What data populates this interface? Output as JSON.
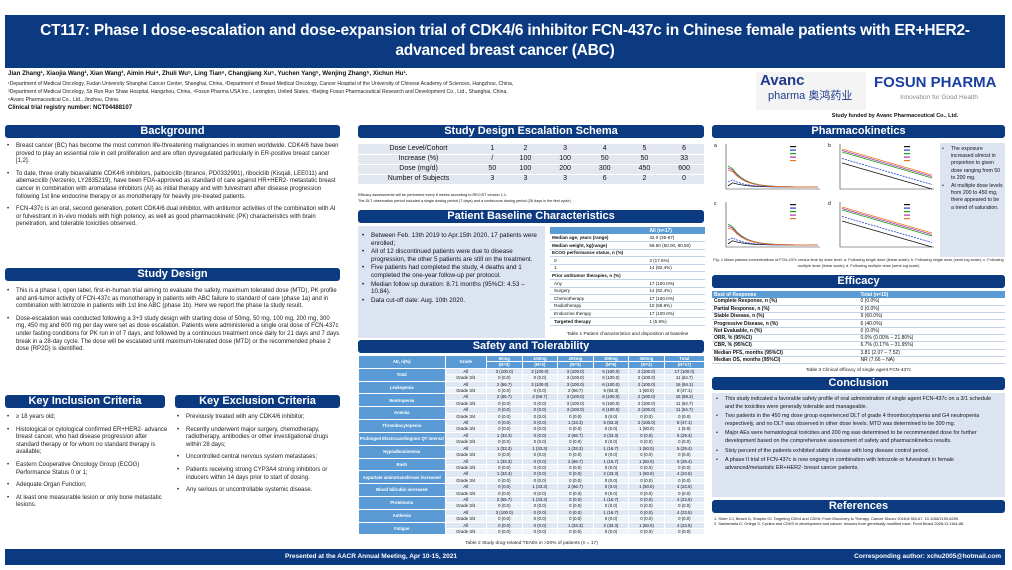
{
  "title": "CT117: Phase I dose-escalation and dose-expansion trial of CDK4/6 inhibitor FCN-437c in Chinese female patients with ER+HER2- advanced breast cancer (ABC)",
  "authors": "Jian Zhang¹, Xiaojia Wang², Xian Wang³, Aimin Hui⁴, Zhuli Wu⁵, Ling Tian⁶, Changjiang Xu⁵, Yuchen Yang⁵, Wenjing Zhang⁵, Xichun Hu¹.",
  "affiliations": [
    "¹Department of Medical Oncology, Fudan University Shanghai Cancer Center, Shanghai, China, ²Department of Breast Medical Oncology, Cancer Hospital of the University of Chinese Academy of Sciences, Hangzhou, China,",
    "³Department of Medical Oncology, Sir Run Run Shaw Hospital, Hangzhou, China, ⁴Fosun Pharma USA Inc., Lexington, United States, ⁵Beijing Fosun Pharmaceutical Research and Development Co., Ltd., Shanghai, China,",
    "⁶Avanc Pharmaceutical Co., Ltd., Jinzhou, China."
  ],
  "registry": "Clinical trial registry number: NCT04488107",
  "logos": {
    "avanc_top": "Avanc",
    "avanc_bottom": "pharma 奥鸿药业",
    "fosun": "FOSUN PHARMA",
    "fosun_tag": "Innovation for Good Health"
  },
  "funded": "Study funded by Avanc Pharmaceutical Co., Ltd.",
  "background": {
    "title": "Background",
    "items": [
      "Breast cancer (BC) has become the most common life-threatening malignancies in women worldwide. CDK4/6 have been proved to play an essential role in cell proliferation and are often dysregulated particularly in ER-positive breast cancer [1,2].",
      "To date, three orally bioavailable CDK4/6 inhibitors, palbociclib (Ibrance, PD0332991), ribociclib (Kisqali, LEE011) and abemaciclib (Verzenio, LY2835219), have been FDA-approved as standard of care against HR+HER2- metastatic breast cancer in combination with aromatase inhibitors (AI) as initial therapy and with fulvestrant after disease progression following 1st line endocrine therapy or as monotherapy for heavily pre-treated patients.",
      "FCN-437c is an oral, second generation, potent CDK4/6 dual inhibitor, with antitumor activities of the combination with AI or fulvestrant in in-vivo models with high potency, as well as good pharmacokinetic (PK) characteristics with brain penetration, and tolerable toxicities observed."
    ]
  },
  "design": {
    "title": "Study Design",
    "items": [
      "This is a phase I, open label, first-in-human trial aiming to evaluate the safety, maximum tolerated dose (MTD), PK profile and anti-tumor activity of FCN-437c as monotherapy in patients with ABC failure to standard of care (phase 1a) and in combination with letrozole in patients with 1st line ABC (phase 1b). Here we report the phase Ia study result.",
      "Dose-escalation was conducted following a 3+3 study design with starting dose of 50mg, 50 mg, 100 mg, 200 mg, 300 mg, 450 mg and 600 mg per day were set as dose escalation. Patients were administered a single oral dose of FCN-437c under fasting conditions for PK run in of 7 days, and followed by a continuous treatment once daily for 21 days and 7 days break in a 28-day cycle. The dose will be escalated until maximum-tolerated dose (MTD) or the recommended phase 2 dose (RP2D) is identified."
    ]
  },
  "inclusion": {
    "title": "Key Inclusion Criteria",
    "items": [
      "≥ 18 years old;",
      "Histological or cytological confirmed ER+HER2- advance breast cancer, who had disease progression after standard therapy or for whom no standard therapy is available;",
      "Eastern Cooperative Oncology Group (ECOG) Performance Status 0 or 1;",
      "Adequate Organ Function;",
      "At least one measurable lesion or only bone metastatic lesions."
    ]
  },
  "exclusion": {
    "title": "Key Exclusion Criteria",
    "items": [
      "Previously treated with any CDK4/6 inhibitor;",
      "Recently underwent major surgery, chemotherapy, radiotherapy, antibodies or other investigational drugs within 28 days;",
      "Uncontrolled central nervous system metastases;",
      "Patients receiving strong CYP3A4 strong inhibitors or inducers within 14 days prior to start of dosing.",
      "Any serious or uncontrollable systemic disease."
    ]
  },
  "schema": {
    "title": "Study Design Escalation Schema",
    "rows": [
      [
        "Dose Level/Cohort",
        "1",
        "2",
        "3",
        "4",
        "5",
        "6"
      ],
      [
        "Increase (%)",
        "/",
        "100",
        "100",
        "50",
        "50",
        "33"
      ],
      [
        "Dose (mg/d)",
        "50",
        "100",
        "200",
        "300",
        "450",
        "600"
      ],
      [
        "Number of Subjects",
        "3",
        "3",
        "3",
        "6",
        "2",
        "0"
      ]
    ],
    "notes": [
      "Efficacy assessments will be performed every 8 weeks according to RECIST version 1.1.",
      "The DLT observation period included a single dosing period (7 days) and a continuous dosing period (28 days in the first cycle)."
    ]
  },
  "baseline": {
    "title": "Patient Baseline Characteristics",
    "items": [
      "Between Feb. 13th 2019 to Apr.15th 2020, 17 patients were enrolled;",
      "All of 12 discontinued patients were due to disease progression, the other 5 patients are still on the treatment.",
      "Five patients had completed the study, 4 deaths and 1 completed the one-year follow-up per protocol.",
      "Median follow up duration: 8.71 months (95%CI: 4.53 – 10.84).",
      "Data cut-off date: Aug. 10th 2020."
    ],
    "table_header": [
      "",
      "All (n=17)"
    ],
    "table_rows": [
      [
        "Median age, years (range)",
        "42.0 (35-67)"
      ],
      [
        "Median weight, kg(range)",
        "58.50 (50.00, 80.50)"
      ],
      [
        "ECOG performance status, n (%)",
        ""
      ],
      [
        "0",
        "3 (17.6%)"
      ],
      [
        "1",
        "14 (82.4%)"
      ],
      [
        "Prior antitumor therapies, n (%)",
        ""
      ],
      [
        "Any",
        "17 (100.0%)"
      ],
      [
        "Surgery",
        "14 (82.4%)"
      ],
      [
        "Chemotherapy",
        "17 (100.0%)"
      ],
      [
        "Radiotherapy",
        "10 (58.8%)"
      ],
      [
        "Endocrine therapy",
        "17 (100.0%)"
      ],
      [
        "Targeted therapy",
        "1 (5.9%)"
      ]
    ],
    "caption": "Table 1 Patient characteristics and disposition at baseline"
  },
  "safety": {
    "title": "Safety and Tolerability",
    "headers": [
      "AE, n(%)",
      "Grade",
      "50mg",
      "100mg",
      "200mg",
      "300mg",
      "450mg",
      "Total"
    ],
    "n": [
      "(N=3)",
      "(N=3)",
      "(N=3)",
      "(N=6)",
      "(N=2)",
      "(N=17)"
    ],
    "rows": [
      {
        "ae": "Total",
        "all": [
          "3 (100.0)",
          "3 (100.0)",
          "3 (100.0)",
          "6 (100.0)",
          "2 (100.0)",
          "17 (100.0)"
        ],
        "g34": [
          "0 (0.0)",
          "0 (0.0)",
          "3 (100.0)",
          "6 (100.0)",
          "2 (100.0)",
          "11 (64.7)"
        ]
      },
      {
        "ae": "Leukopenia",
        "all": [
          "2 (66.7)",
          "3 (100.0)",
          "3 (100.0)",
          "6 (100.0)",
          "2 (100.0)",
          "16 (94.1)"
        ],
        "g34": [
          "0 (0.0)",
          "0 (0.0)",
          "2 (66.7)",
          "5 (83.3)",
          "1 (50.0)",
          "8 (47.1)"
        ]
      },
      {
        "ae": "Neutropenia",
        "all": [
          "2 (66.7)",
          "2 (66.7)",
          "3 (100.0)",
          "6 (100.0)",
          "2 (100.0)",
          "15 (88.2)"
        ],
        "g34": [
          "0 (0.0)",
          "0 (0.0)",
          "3 (100.0)",
          "6 (100.0)",
          "2 (100.0)",
          "11 (64.7)"
        ]
      },
      {
        "ae": "Anemia",
        "all": [
          "0 (0.0)",
          "0 (0.0)",
          "3 (100.0)",
          "6 (100.0)",
          "2 (100.0)",
          "11 (64.7)"
        ],
        "g34": [
          "0 (0.0)",
          "0 (0.0)",
          "0 (0.0)",
          "0 (0.0)",
          "0 (0.0)",
          "0 (0.0)"
        ]
      },
      {
        "ae": "Thrombocytopenia",
        "all": [
          "0 (0.0)",
          "0 (0.0)",
          "1 (33.3)",
          "5 (83.3)",
          "2 (100.0)",
          "8 (47.1)"
        ],
        "g34": [
          "0 (0.0)",
          "0 (0.0)",
          "0 (0.0)",
          "0 (0.0)",
          "1 (50.0)",
          "1 (5.9)"
        ]
      },
      {
        "ae": "Prolonged Electrocardiogram QT interval",
        "all": [
          "1 (33.3)",
          "0 (0.0)",
          "2 (66.7)",
          "2 (33.3)",
          "0 (0.0)",
          "5 (29.4)"
        ],
        "g34": [
          "0 (0.0)",
          "0 (0.0)",
          "0 (0.0)",
          "0 (0.0)",
          "0 (0.0)",
          "0 (0.0)"
        ]
      },
      {
        "ae": "Hypoalbuminemia",
        "all": [
          "1 (33.3)",
          "1 (33.3)",
          "1 (33.3)",
          "1 (16.7)",
          "1 (50.0)",
          "5 (29.4)"
        ],
        "g34": [
          "0 (0.0)",
          "0 (0.0)",
          "0 (0.0)",
          "0 (0.0)",
          "0 (0.0)",
          "0 (0.0)"
        ]
      },
      {
        "ae": "Rash",
        "all": [
          "1 (33.3)",
          "0 (0.0)",
          "2 (66.7)",
          "1 (16.7)",
          "1 (50.0)",
          "5 (29.4)"
        ],
        "g34": [
          "0 (0.0)",
          "0 (0.0)",
          "0 (0.0)",
          "0 (0.0)",
          "0 (0.0)",
          "0 (0.0)"
        ]
      },
      {
        "ae": "Aspartate aminotransferase increased",
        "all": [
          "1 (33.3)",
          "0 (0.0)",
          "0 (0.0)",
          "2 (33.3)",
          "1 (50.0)",
          "4 (23.5)"
        ],
        "g34": [
          "0 (0.0)",
          "0 (0.0)",
          "0 (0.0)",
          "0 (0.0)",
          "0 (0.0)",
          "0 (0.0)"
        ]
      },
      {
        "ae": "Blood bilirubin increased",
        "all": [
          "0 (0.0)",
          "1 (33.3)",
          "2 (66.7)",
          "0 (0.0)",
          "1 (50.0)",
          "4 (23.5)"
        ],
        "g34": [
          "0 (0.0)",
          "0 (0.0)",
          "0 (0.0)",
          "0 (0.0)",
          "0 (0.0)",
          "0 (0.0)"
        ]
      },
      {
        "ae": "Proteinuria",
        "all": [
          "2 (66.7)",
          "1 (33.3)",
          "0 (0.0)",
          "1 (16.7)",
          "0 (0.0)",
          "4 (23.5)"
        ],
        "g34": [
          "0 (0.0)",
          "0 (0.0)",
          "0 (0.0)",
          "0 (0.0)",
          "0 (0.0)",
          "0 (0.0)"
        ]
      },
      {
        "ae": "Asthenia",
        "all": [
          "3 (100.0)",
          "0 (0.0)",
          "0 (0.0)",
          "1 (16.7)",
          "0 (0.0)",
          "4 (23.5)"
        ],
        "g34": [
          "0 (0.0)",
          "0 (0.0)",
          "0 (0.0)",
          "0 (0.0)",
          "0 (0.0)",
          "0 (0.0)"
        ]
      },
      {
        "ae": "Fatigue",
        "all": [
          "0 (0.0)",
          "0 (0.0)",
          "1 (33.3)",
          "2 (33.3)",
          "1 (50.0)",
          "4 (23.5)"
        ],
        "g34": [
          "0 (0.0)",
          "0 (0.0)",
          "0 (0.0)",
          "0 (0.0)",
          "0 (0.0)",
          "0 (0.0)"
        ]
      }
    ],
    "grade_all": "All",
    "grade_34": "Grade 3/4",
    "caption": "Table 2 Study drug-related TEAEs in >20% of patients (n = 17)"
  },
  "pk": {
    "title": "Pharmacokinetics",
    "items": [
      "The exposure increased almost in proportion to given dose ranging from 50 to 200 mg.",
      "At multiple dose levels from 200 to 450 mg, there appeared to be a trend of saturation."
    ],
    "caption": "Fig. 1 Mean plasma concentrations of FCN-437c versus time by dose level. a. Following single dose (linear scale); b. Following single dose (semi-log scale); c. Following multiple dose (linear scale); d. Following multiple dose (semi-log scale)",
    "panel_labels": [
      "a",
      "b",
      "c",
      "d"
    ],
    "series_colors": [
      "#111111",
      "#1f3fd8",
      "#18a018",
      "#b030b0",
      "#e87820"
    ]
  },
  "efficacy": {
    "title": "Efficacy",
    "header": [
      "Best of Response",
      "Total (n=15)"
    ],
    "rows": [
      [
        "Complete Response, n (%)",
        "0 (0.0%)"
      ],
      [
        "Partial Response, n (%)",
        "0 (0.0%)"
      ],
      [
        "Stable Disease, n (%)",
        "9 (60.0%)"
      ],
      [
        "Progressive Disease, n (%)",
        "6 (40.0%)"
      ],
      [
        "Not Evaluable, n (%)",
        "0 (0.0%)"
      ],
      [
        "ORR, % (95%CI)",
        "0.0% (0.00% – 21.80%)"
      ],
      [
        "CBR, % (95%CI)",
        "6.7% (0.17% – 31.95%)"
      ],
      [
        "Median PFS, months (95%CI)",
        "3.81 (2.07 – 7.52)"
      ],
      [
        "Median OS, months (95%CI)",
        "NR (7.66 – NA)"
      ]
    ],
    "caption": "Table 3 Clinical efficacy of single agent FCN-437c"
  },
  "conclusion": {
    "title": "Conclusion",
    "items": [
      "This study indicated a favorable safety profile of oral administration of single agent FCN-437c on a 3/1 schedule and the toxicities were generally tolerable and manageable.",
      "Two patients in the 450 mg dose group experienced DLT of grade 4 thrombocytopenia and G4 neutropenia respectively, and no DLT was observed in other dose levels. MTD was determined to be 300 mg.",
      "Major AEs were hematological toxicities and 200 mg was determined to be recommended dose for further development based on the comprehensive assessment of safety and pharmacokinetics results.",
      "Sixty percent of the patients exhibited stable disease with long disease control period.",
      "A phase II trial of FCN-437c is now ongoing in combination with letrozole or fulvestrant in female advanced/metastatic ER+HER2- breast cancer patients."
    ]
  },
  "references": {
    "title": "References",
    "items": [
      "1.  Sherr CJ, Beach D, Shapiro GI. Targeting CDK4 and CDK6: From Discovery to Therapy. Cancer Discov 2016;6:353-67. 10.1158/2159-8290.",
      "2.  Santamaria D, Ortega S. Cyclins and CDKS in development and cancer: lessons from genetically modified mice. Front Biosci 2006;11:1164-88."
    ]
  },
  "footer": {
    "presented": "Presented at the AACR Annual Meeting, Apr 10-15, 2021",
    "corresponding": "Corresponding author:  xchu2005@hotmail.com"
  }
}
